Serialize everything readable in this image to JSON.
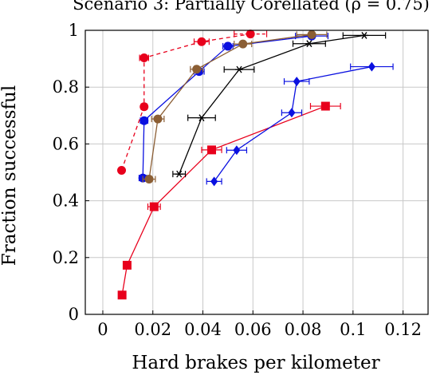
{
  "chart_data": {
    "type": "scatter",
    "title": "Scenario 3: Partially Corellated (ρ = 0.75)",
    "xlabel": "Hard brakes per kilometer",
    "ylabel": "Fraction successful",
    "xlim": [
      -0.007,
      0.13
    ],
    "ylim": [
      0,
      1.0
    ],
    "xticks": [
      "0",
      "0.02",
      "0.04",
      "0.06",
      "0.08",
      "0.1",
      "0.12"
    ],
    "xtick_values": [
      0,
      0.02,
      0.04,
      0.06,
      0.08,
      0.1,
      0.12
    ],
    "yticks": [
      "0",
      "0.2",
      "0.4",
      "0.6",
      "0.8",
      "1"
    ],
    "ytick_values": [
      0,
      0.2,
      0.4,
      0.6,
      0.8,
      1.0
    ],
    "grid": true,
    "series": [
      {
        "color": "#e8001c",
        "marker": "square",
        "dashed": false,
        "points": [
          {
            "x": 0.0077,
            "y": 0.068,
            "xerr": 0.0
          },
          {
            "x": 0.0097,
            "y": 0.173,
            "xerr": 0.0
          },
          {
            "x": 0.0205,
            "y": 0.379,
            "xerr": 0.0025
          },
          {
            "x": 0.0435,
            "y": 0.579,
            "xerr": 0.004
          },
          {
            "x": 0.089,
            "y": 0.733,
            "xerr": 0.006
          }
        ]
      },
      {
        "color": "#0a10e0",
        "marker": "diamond",
        "dashed": false,
        "points": [
          {
            "x": 0.0445,
            "y": 0.468,
            "xerr": 0.003
          },
          {
            "x": 0.0535,
            "y": 0.578,
            "xerr": 0.004
          },
          {
            "x": 0.0755,
            "y": 0.71,
            "xerr": 0.004
          },
          {
            "x": 0.0775,
            "y": 0.82,
            "xerr": 0.005
          },
          {
            "x": 0.1075,
            "y": 0.872,
            "xerr": 0.0085
          }
        ]
      },
      {
        "color": "#000000",
        "marker": "star",
        "dashed": false,
        "points": [
          {
            "x": 0.0305,
            "y": 0.494,
            "xerr": 0.0025
          },
          {
            "x": 0.0395,
            "y": 0.692,
            "xerr": 0.0055
          },
          {
            "x": 0.0545,
            "y": 0.862,
            "xerr": 0.006
          },
          {
            "x": 0.0825,
            "y": 0.953,
            "xerr": 0.0065
          },
          {
            "x": 0.1045,
            "y": 0.982,
            "xerr": 0.0085
          }
        ]
      },
      {
        "color": "#0a10e0",
        "marker": "circle",
        "dashed": false,
        "points": [
          {
            "x": 0.016,
            "y": 0.48,
            "xerr": 0.0015
          },
          {
            "x": 0.0165,
            "y": 0.682,
            "xerr": 0.0015
          },
          {
            "x": 0.0385,
            "y": 0.855,
            "xerr": 0.002
          },
          {
            "x": 0.05,
            "y": 0.944,
            "xerr": 0.002
          },
          {
            "x": 0.0835,
            "y": 0.98,
            "xerr": 0.0065
          }
        ]
      },
      {
        "color": "#8b5e34",
        "marker": "circle",
        "dashed": false,
        "points": [
          {
            "x": 0.0185,
            "y": 0.476,
            "xerr": 0.0025
          },
          {
            "x": 0.022,
            "y": 0.688,
            "xerr": 0.0025
          },
          {
            "x": 0.0375,
            "y": 0.863,
            "xerr": 0.0025
          },
          {
            "x": 0.056,
            "y": 0.952,
            "xerr": 0.0035
          },
          {
            "x": 0.0835,
            "y": 0.985,
            "xerr": 0.006
          }
        ]
      },
      {
        "color": "#e8001c",
        "marker": "circle",
        "dashed": true,
        "points": [
          {
            "x": 0.0075,
            "y": 0.507,
            "xerr": 0.0008
          },
          {
            "x": 0.0165,
            "y": 0.731,
            "xerr": 0.0012
          },
          {
            "x": 0.0165,
            "y": 0.903,
            "xerr": 0.0018
          },
          {
            "x": 0.0395,
            "y": 0.96,
            "xerr": 0.003
          },
          {
            "x": 0.059,
            "y": 0.987,
            "xerr": 0.0065
          }
        ]
      }
    ]
  }
}
